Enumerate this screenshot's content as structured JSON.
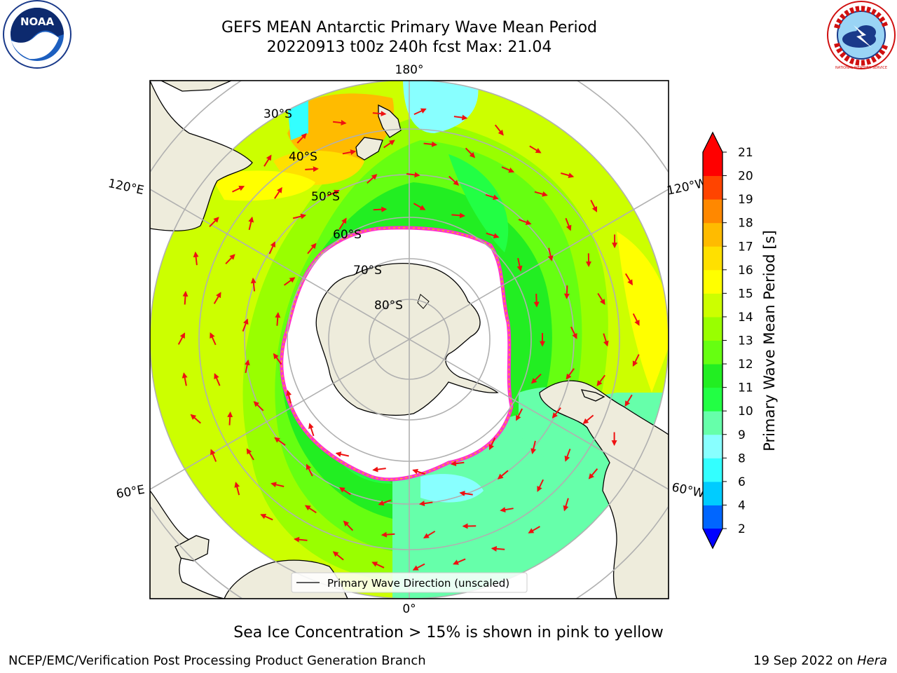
{
  "header": {
    "title_line1": "GEFS MEAN Antarctic Primary Wave Mean Period",
    "title_line2": "20220913 t00z 240h fcst   Max: 21.04"
  },
  "logos": {
    "left_text": "NOAA",
    "right_text": "NATIONAL WEATHER SERVICE"
  },
  "map": {
    "projection": "south-polar-stereographic",
    "lat_labels": [
      "30°S",
      "40°S",
      "50°S",
      "60°S",
      "70°S",
      "80°S"
    ],
    "lon_labels": {
      "top": "180°",
      "bottom": "0°",
      "upper_left": "120°E",
      "lower_left": "60°E",
      "upper_right": "120°W",
      "lower_right": "60°W"
    },
    "legend_text": "Primary Wave Direction (unscaled)",
    "colors": {
      "land": "#eeecdc",
      "ice_edge": "#ff33cc",
      "arrow": "#ee1111",
      "grid": "#b0b0b0"
    }
  },
  "colorbar": {
    "title": "Primary Wave Mean Period [s]",
    "ticks": [
      "2",
      "4",
      "6",
      "8",
      "9",
      "10",
      "11",
      "12",
      "13",
      "14",
      "15",
      "16",
      "17",
      "18",
      "19",
      "20",
      "21"
    ],
    "colors": [
      "#0000ff",
      "#0066ff",
      "#00ccff",
      "#33ffff",
      "#88ffff",
      "#66ffaa",
      "#22ff44",
      "#22ee22",
      "#66ff11",
      "#99ff00",
      "#ccff00",
      "#ffff00",
      "#ffe000",
      "#ffbb00",
      "#ff8800",
      "#ff4400",
      "#ff0000"
    ],
    "under_color": "#0000ff",
    "over_color": "#ff0000"
  },
  "footer": {
    "caption": "Sea Ice Concentration > 15% is shown in pink to yellow",
    "left": "NCEP/EMC/Verification Post Processing Product Generation Branch",
    "right_date": "19 Sep 2022 on ",
    "right_host": "Hera"
  }
}
